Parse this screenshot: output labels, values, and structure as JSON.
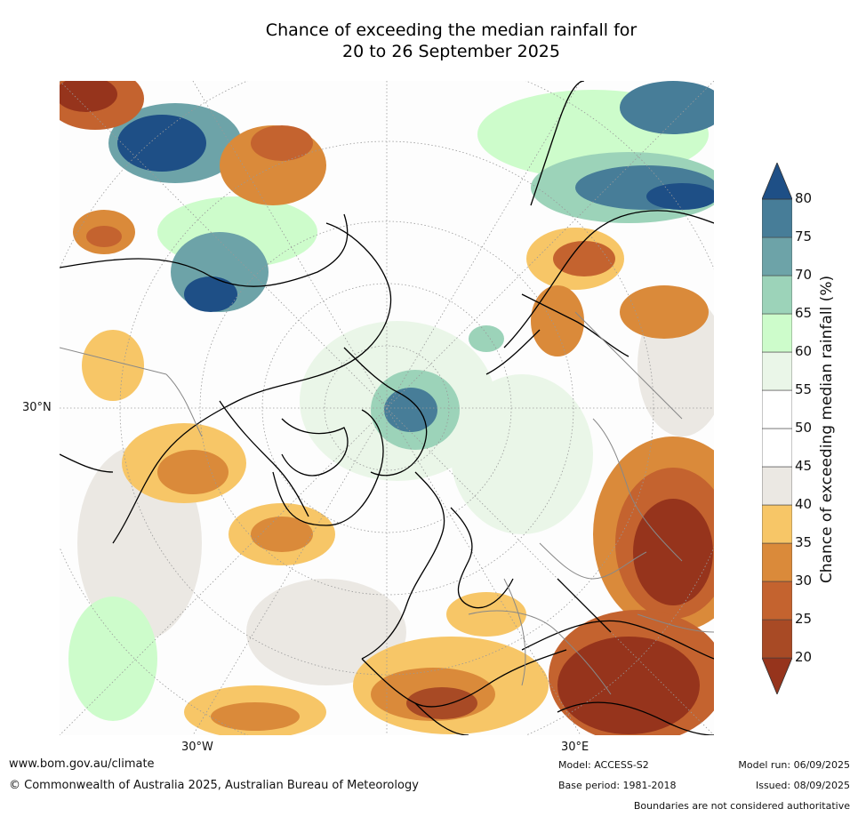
{
  "title_line1": "Chance of exceeding the median rainfall for",
  "title_line2": "20 to 26 September 2025",
  "map": {
    "lat_label": "30°N",
    "lon_labels": [
      "30°W",
      "30°E"
    ]
  },
  "colorbar": {
    "label": "Chance of exceeding median rainfall (%)",
    "ticks": [
      "20",
      "25",
      "30",
      "35",
      "40",
      "45",
      "50",
      "55",
      "60",
      "65",
      "70",
      "75",
      "80"
    ],
    "colors": [
      "#96341c",
      "#a84a25",
      "#c4632f",
      "#da8a3a",
      "#f7c667",
      "#ebe8e3",
      "#ffffff",
      "#ffffff",
      "#eaf6e8",
      "#cdfccb",
      "#9cd3b9",
      "#6da3a8",
      "#477d98",
      "#1e4f86"
    ]
  },
  "footer": {
    "website": "www.bom.gov.au/climate",
    "copyright": "© Commonwealth of Australia 2025, Australian Bureau of Meteorology",
    "model": "Model: ACCESS-S2",
    "base_period": "Base period: 1981-2018",
    "model_run": "Model run: 06/09/2025",
    "issued": "Issued: 08/09/2025",
    "disclaimer": "Boundaries are not considered authoritative"
  }
}
